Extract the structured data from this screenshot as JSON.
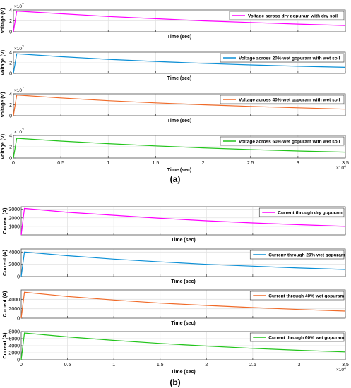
{
  "figure": {
    "caption_a": "(a)",
    "caption_b": "(b)"
  },
  "chart_data": [
    {
      "type": "line",
      "panel": "a1",
      "title": "",
      "xlabel": "Time (sec)",
      "ylabel": "Voltage (V)",
      "xlim": [
        0,
        35000
      ],
      "ylim": [
        0,
        40000000
      ],
      "y_exponent_label": "×10^7",
      "yticks": [
        0,
        2,
        4
      ],
      "grid": true,
      "legend_position": "top-right",
      "series": [
        {
          "name": "Voltage across dry gopuram with dry soil",
          "color": "#ff00ff",
          "x": [
            0,
            350,
            5000,
            10000,
            15000,
            20000,
            25000,
            30000,
            35000
          ],
          "y": [
            0,
            38000000,
            33000000,
            28000000,
            24000000,
            20000000,
            17000000,
            14000000,
            11500000
          ]
        }
      ]
    },
    {
      "type": "line",
      "panel": "a2",
      "title": "",
      "xlabel": "Time (sec)",
      "ylabel": "Voltage (V)",
      "xlim": [
        0,
        35000
      ],
      "ylim": [
        0,
        40000000
      ],
      "y_exponent_label": "×10^7",
      "yticks": [
        0,
        2,
        4
      ],
      "grid": true,
      "legend_position": "top-right",
      "series": [
        {
          "name": "Voltage across 20% wet gopuram with wet soil",
          "color": "#0b8fd6",
          "x": [
            0,
            350,
            5000,
            10000,
            15000,
            20000,
            25000,
            30000,
            35000
          ],
          "y": [
            0,
            37000000,
            31500000,
            26500000,
            22500000,
            19000000,
            16000000,
            13500000,
            11500000
          ]
        }
      ]
    },
    {
      "type": "line",
      "panel": "a3",
      "title": "",
      "xlabel": "Time (sec)",
      "ylabel": "Voltage (V)",
      "xlim": [
        0,
        35000
      ],
      "ylim": [
        0,
        40000000
      ],
      "y_exponent_label": "×10^7",
      "yticks": [
        0,
        2,
        4
      ],
      "grid": true,
      "legend_position": "top-right",
      "series": [
        {
          "name": "Voltage across 40% wet gopuram with wet soil",
          "color": "#f06a28",
          "x": [
            0,
            350,
            5000,
            10000,
            15000,
            20000,
            25000,
            30000,
            35000
          ],
          "y": [
            0,
            38000000,
            32500000,
            27500000,
            23500000,
            20000000,
            17000000,
            14500000,
            12000000
          ]
        }
      ]
    },
    {
      "type": "line",
      "panel": "a4",
      "title": "",
      "xlabel": "Time (sec)",
      "ylabel": "Voltage (V)",
      "xlim": [
        0,
        35000
      ],
      "ylim": [
        0,
        40000000
      ],
      "y_exponent_label": "×10^7",
      "x_exponent_label": "×10^4",
      "yticks": [
        0,
        2,
        4
      ],
      "xticks": [
        "0",
        "0.5",
        "1",
        "1.5",
        "2",
        "2.5",
        "3",
        "3.5"
      ],
      "grid": true,
      "legend_position": "top-right",
      "series": [
        {
          "name": "Voltage across 60% wet gopuram with wet soil",
          "color": "#22c41b",
          "x": [
            0,
            350,
            5000,
            10000,
            15000,
            20000,
            25000,
            30000,
            35000
          ],
          "y": [
            0,
            35000000,
            30000000,
            25500000,
            21500000,
            18000000,
            15000000,
            12500000,
            10500000
          ]
        }
      ]
    },
    {
      "type": "line",
      "panel": "b1",
      "title": "",
      "xlabel": "Time (sec)",
      "ylabel": "Current (A)",
      "xlim": [
        0,
        35000
      ],
      "ylim": [
        0,
        3300
      ],
      "yticks": [
        1000,
        2000,
        3000
      ],
      "grid": true,
      "legend_position": "top-right",
      "series": [
        {
          "name": "Current through dry gopuram",
          "color": "#ff00ff",
          "x": [
            0,
            350,
            5000,
            10000,
            15000,
            20000,
            25000,
            30000,
            35000
          ],
          "y": [
            0,
            3100,
            2650,
            2300,
            1950,
            1650,
            1400,
            1200,
            1000
          ]
        }
      ]
    },
    {
      "type": "line",
      "panel": "b2",
      "title": "",
      "xlabel": "Time (sec)",
      "ylabel": "Current (A)",
      "xlim": [
        0,
        35000
      ],
      "ylim": [
        0,
        4500
      ],
      "yticks": [
        0,
        2000,
        4000
      ],
      "grid": true,
      "legend_position": "top-right",
      "series": [
        {
          "name": "Curreny through 20% wet gopuram",
          "color": "#0b8fd6",
          "x": [
            0,
            350,
            5000,
            10000,
            15000,
            20000,
            25000,
            30000,
            35000
          ],
          "y": [
            0,
            4000,
            3400,
            2850,
            2400,
            2000,
            1700,
            1400,
            1150
          ]
        }
      ]
    },
    {
      "type": "line",
      "panel": "b3",
      "title": "",
      "xlabel": "Time (sec)",
      "ylabel": "Current (A)",
      "xlim": [
        0,
        35000
      ],
      "ylim": [
        0,
        6000
      ],
      "yticks": [
        0,
        2000,
        4000
      ],
      "grid": true,
      "legend_position": "top-right",
      "series": [
        {
          "name": "Current through 40% wet gopuram",
          "color": "#f06a28",
          "x": [
            0,
            350,
            5000,
            10000,
            15000,
            20000,
            25000,
            30000,
            35000
          ],
          "y": [
            0,
            5500,
            4600,
            3850,
            3200,
            2700,
            2250,
            1850,
            1500
          ]
        }
      ]
    },
    {
      "type": "line",
      "panel": "b4",
      "title": "",
      "xlabel": "Time (sec)",
      "ylabel": "Current (A)",
      "xlim": [
        0,
        35000
      ],
      "ylim": [
        0,
        8000
      ],
      "x_exponent_label": "×10^4",
      "yticks": [
        0,
        2000,
        4000,
        6000,
        8000
      ],
      "xticks": [
        "0",
        "0.5",
        "1",
        "1.5",
        "2",
        "2.5",
        "3",
        "3.5"
      ],
      "grid": true,
      "legend_position": "top-right",
      "series": [
        {
          "name": "Current through 60% wet gopuram",
          "color": "#22c41b",
          "x": [
            0,
            350,
            5000,
            10000,
            15000,
            20000,
            25000,
            30000,
            35000
          ],
          "y": [
            0,
            7600,
            6500,
            5500,
            4650,
            3900,
            3250,
            2700,
            2250
          ]
        }
      ]
    }
  ]
}
